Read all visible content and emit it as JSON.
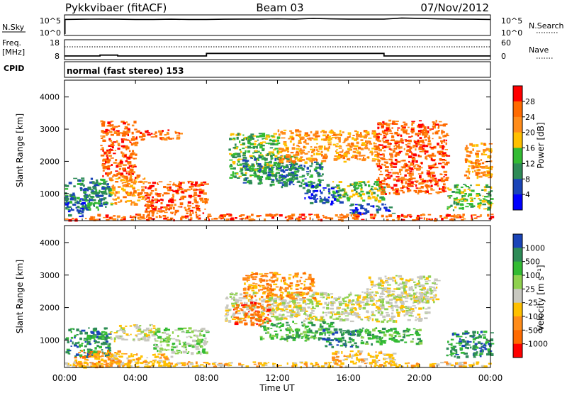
{
  "header": {
    "station": "Pykkvibaer (fitACF)",
    "beam": "Beam 03",
    "date": "07/Nov/2012"
  },
  "chart_data": [
    {
      "type": "line",
      "panel": "noise",
      "labels": {
        "left_label": "N.Sky",
        "left_ticks": [
          "10^5",
          "10^0"
        ],
        "right_label": "N.Search",
        "right_ticks": [
          "10^5",
          "10^0"
        ]
      },
      "x": [
        0,
        1,
        2,
        3,
        4,
        5,
        6,
        7,
        8,
        9,
        10,
        11,
        12,
        13,
        14,
        15,
        16,
        17,
        18,
        19,
        20,
        21,
        22,
        23,
        24
      ],
      "series": [
        {
          "values": [
            4.3,
            4.35,
            4.4,
            4.35,
            4.3,
            4.3,
            4.35,
            4.3,
            4.3,
            4.35,
            4.4,
            4.4,
            4.45,
            4.4,
            4.6,
            4.45,
            4.4,
            4.4,
            4.4,
            4.7,
            4.6,
            4.45,
            4.4,
            4.35,
            4.3
          ]
        }
      ]
    },
    {
      "type": "line",
      "panel": "frequency",
      "labels": {
        "left_label_1": "Freq.",
        "left_label_2": "[MHz]",
        "left_ticks": [
          "18",
          "8"
        ],
        "right_label": "Nave",
        "right_ticks": [
          "60",
          "0"
        ]
      },
      "x": [
        0,
        2,
        2,
        3,
        3,
        8,
        8,
        18,
        18,
        24
      ],
      "series": [
        {
          "values": [
            9.3,
            9.3,
            9.8,
            9.8,
            9.3,
            9.3,
            10.8,
            10.8,
            9.3,
            9.3
          ]
        }
      ],
      "nave_level": 40
    },
    {
      "type": "table",
      "panel": "cpid",
      "label": "CPID",
      "segments": [
        {
          "start": 0,
          "end": 24,
          "text": "normal (fast stereo) 153"
        }
      ]
    },
    {
      "type": "heatmap",
      "panel": "power",
      "ylabel": "Slant Range [km]",
      "xlim": [
        0,
        24
      ],
      "ylim": [
        180,
        4500
      ],
      "yticks": [
        1000,
        2000,
        3000,
        4000
      ],
      "color_scale": {
        "label": "Power [dB]",
        "ticks": [
          "28",
          "24",
          "20",
          "16",
          "12",
          "8",
          "4"
        ],
        "colors": [
          "#ff0000",
          "#ff6a00",
          "#ff8c1a",
          "#ffc000",
          "#33bb33",
          "#2e8b57",
          "#1a44b8",
          "#0000ff"
        ]
      },
      "regions": [
        {
          "t": [
            0.0,
            2.5
          ],
          "r": [
            500,
            1500
          ],
          "level": 5
        },
        {
          "t": [
            0.0,
            1.0
          ],
          "r": [
            300,
            900
          ],
          "level": 6
        },
        {
          "t": [
            1.0,
            2.6
          ],
          "r": [
            700,
            1200
          ],
          "level": 5
        },
        {
          "t": [
            2.5,
            4.5
          ],
          "r": [
            700,
            1600
          ],
          "level": 2
        },
        {
          "t": [
            4.5,
            8.0
          ],
          "r": [
            400,
            1400
          ],
          "level": 1
        },
        {
          "t": [
            2.0,
            4.0
          ],
          "r": [
            1500,
            3300
          ],
          "level": 1
        },
        {
          "t": [
            4.0,
            6.5
          ],
          "r": [
            2700,
            3000
          ],
          "level": 1
        },
        {
          "t": [
            9.2,
            12.0
          ],
          "r": [
            1500,
            2900
          ],
          "level": 4
        },
        {
          "t": [
            10.0,
            13.0
          ],
          "r": [
            1300,
            2200
          ],
          "level": 5
        },
        {
          "t": [
            12.0,
            14.5
          ],
          "r": [
            1200,
            2000
          ],
          "level": 5
        },
        {
          "t": [
            13.5,
            15.5
          ],
          "r": [
            700,
            1300
          ],
          "level": 6
        },
        {
          "t": [
            15.0,
            18.0
          ],
          "r": [
            800,
            1400
          ],
          "level": 4
        },
        {
          "t": [
            16.0,
            18.5
          ],
          "r": [
            400,
            700
          ],
          "level": 6
        },
        {
          "t": [
            12.0,
            17.5
          ],
          "r": [
            2000,
            3000
          ],
          "level": 2
        },
        {
          "t": [
            17.5,
            21.5
          ],
          "r": [
            1000,
            3300
          ],
          "level": 1
        },
        {
          "t": [
            21.5,
            24.0
          ],
          "r": [
            500,
            1300
          ],
          "level": 4
        },
        {
          "t": [
            22.5,
            24.0
          ],
          "r": [
            1500,
            2600
          ],
          "level": 2
        },
        {
          "t": [
            0.0,
            24.0
          ],
          "r": [
            200,
            380
          ],
          "level": 1
        }
      ]
    },
    {
      "type": "heatmap",
      "panel": "velocity",
      "ylabel": "Slant Range [km]",
      "xlabel": "Time UT",
      "xlim": [
        0,
        24
      ],
      "ylim": [
        180,
        4500
      ],
      "yticks": [
        1000,
        2000,
        3000,
        4000
      ],
      "xticks": [
        "00:00",
        "04:00",
        "08:00",
        "12:00",
        "16:00",
        "20:00",
        "00:00"
      ],
      "color_scale": {
        "label": "Velocity [m s⁻¹]",
        "ticks": [
          "1000",
          "500",
          "100",
          "25",
          "-25",
          "-100",
          "-500",
          "-1000"
        ],
        "colors": [
          "#1a44b8",
          "#2e8b57",
          "#33bb33",
          "#8fd14f",
          "#c8c8c0",
          "#ffc000",
          "#ff8c1a",
          "#ff6a00",
          "#ff0000"
        ]
      },
      "regions": [
        {
          "t": [
            0.0,
            2.5
          ],
          "r": [
            500,
            1400
          ],
          "level": 1
        },
        {
          "t": [
            0.5,
            3.0
          ],
          "r": [
            200,
            700
          ],
          "level": 6
        },
        {
          "t": [
            2.5,
            5.0
          ],
          "r": [
            1000,
            1500
          ],
          "level": 4
        },
        {
          "t": [
            2.5,
            6.0
          ],
          "r": [
            200,
            600
          ],
          "level": 5
        },
        {
          "t": [
            5.0,
            8.0
          ],
          "r": [
            600,
            1400
          ],
          "level": 3
        },
        {
          "t": [
            9.0,
            20.5
          ],
          "r": [
            1600,
            2500
          ],
          "level": 4
        },
        {
          "t": [
            9.5,
            11.5
          ],
          "r": [
            1500,
            2200
          ],
          "level": 7
        },
        {
          "t": [
            10.0,
            14.0
          ],
          "r": [
            2300,
            3100
          ],
          "level": 6
        },
        {
          "t": [
            11.0,
            15.0
          ],
          "r": [
            1000,
            1600
          ],
          "level": 2
        },
        {
          "t": [
            14.5,
            16.5
          ],
          "r": [
            800,
            1400
          ],
          "level": 1
        },
        {
          "t": [
            15.0,
            18.5
          ],
          "r": [
            300,
            700
          ],
          "level": 5
        },
        {
          "t": [
            16.5,
            20.0
          ],
          "r": [
            900,
            1400
          ],
          "level": 2
        },
        {
          "t": [
            17.0,
            21.0
          ],
          "r": [
            2200,
            3000
          ],
          "level": 4
        },
        {
          "t": [
            21.5,
            24.0
          ],
          "r": [
            500,
            1300
          ],
          "level": 1
        },
        {
          "t": [
            0.0,
            24.0
          ],
          "r": [
            200,
            350
          ],
          "level": 5
        }
      ]
    }
  ]
}
